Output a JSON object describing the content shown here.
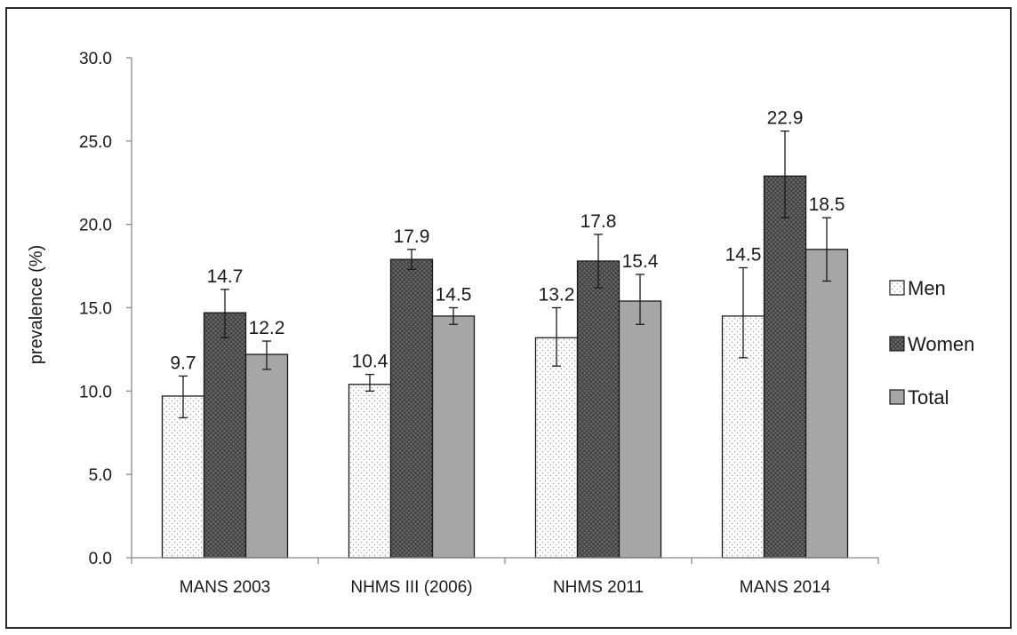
{
  "chart_data": {
    "type": "bar",
    "title": "",
    "xlabel": "",
    "ylabel": "prevalence (%)",
    "ylim": [
      0,
      30
    ],
    "yticks": [
      "0.0",
      "5.0",
      "10.0",
      "15.0",
      "20.0",
      "25.0",
      "30.0"
    ],
    "categories": [
      "MANS 2003",
      "NHMS III (2006)",
      "NHMS 2011",
      "MANS 2014"
    ],
    "series": [
      {
        "name": "Men",
        "values": [
          9.7,
          10.4,
          13.2,
          14.5
        ],
        "labels": [
          "9.7",
          "10.4",
          "13.2",
          "14.5"
        ],
        "error_low": [
          8.4,
          10.0,
          11.5,
          12.0
        ],
        "error_high": [
          10.9,
          11.0,
          15.0,
          17.4
        ],
        "fill": "dots",
        "color": "#ffffff"
      },
      {
        "name": "Women",
        "values": [
          14.7,
          17.9,
          17.8,
          22.9
        ],
        "labels": [
          "14.7",
          "17.9",
          "17.8",
          "22.9"
        ],
        "error_low": [
          13.2,
          17.3,
          16.2,
          20.4
        ],
        "error_high": [
          16.1,
          18.5,
          19.4,
          25.6
        ],
        "fill": "crosshatch",
        "color": "#555555"
      },
      {
        "name": "Total",
        "values": [
          12.2,
          14.5,
          15.4,
          18.5
        ],
        "labels": [
          "12.2",
          "14.5",
          "15.4",
          "18.5"
        ],
        "error_low": [
          11.3,
          14.0,
          14.0,
          16.6
        ],
        "error_high": [
          13.0,
          15.0,
          17.0,
          20.4
        ],
        "fill": "solid",
        "color": "#a6a6a6"
      }
    ],
    "grid": false,
    "legend_position": "right"
  }
}
